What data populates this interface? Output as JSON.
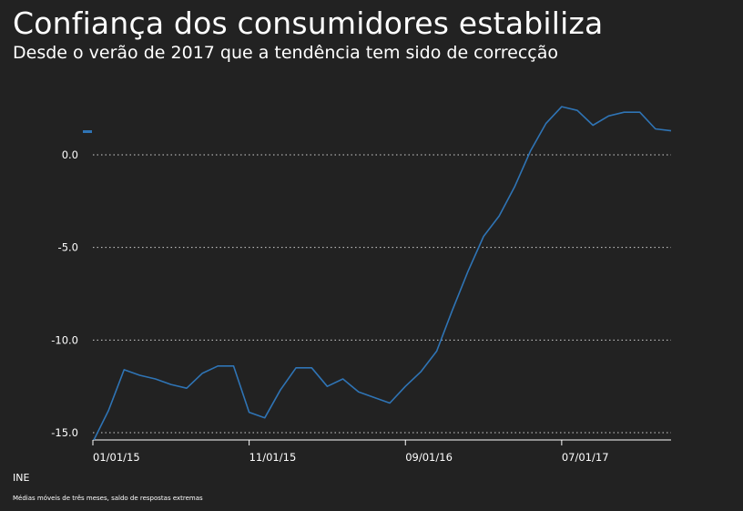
{
  "header": {
    "title": "Confiança dos consumidores estabiliza",
    "subtitle": "Desde o verão de 2017 que a tendência tem sido de correcção"
  },
  "footer": {
    "source": "INE",
    "note": "Médias móveis de três meses, saldo de respostas extremas"
  },
  "colors": {
    "background": "#222222",
    "line": "#2f74b5",
    "grid": "#cfcfcf",
    "text": "#ffffff"
  },
  "chart_data": {
    "type": "line",
    "title": "Confiança dos consumidores estabiliza",
    "subtitle": "Desde o verão de 2017 que a tendência tem sido de correcção",
    "xlabel": "",
    "ylabel": "",
    "ylim": [
      -15,
      0
    ],
    "y_ticks": [
      0,
      -5,
      -10,
      -15
    ],
    "y_tick_labels": [
      "0.0",
      "-5.0",
      "-10.0",
      "-15.0"
    ],
    "x_tick_indices": [
      0,
      10,
      20,
      30
    ],
    "x_tick_labels": [
      "01/01/15",
      "11/01/15",
      "09/01/16",
      "07/01/17"
    ],
    "legend": {
      "position": "top-left",
      "entries": [
        ""
      ]
    },
    "grid": true,
    "series": [
      {
        "name": "",
        "x": [
          "01/01/15",
          "02/01/15",
          "03/01/15",
          "04/01/15",
          "05/01/15",
          "06/01/15",
          "07/01/15",
          "08/01/15",
          "09/01/15",
          "10/01/15",
          "11/01/15",
          "12/01/15",
          "01/01/16",
          "02/01/16",
          "03/01/16",
          "04/01/16",
          "05/01/16",
          "06/01/16",
          "07/01/16",
          "08/01/16",
          "09/01/16",
          "10/01/16",
          "11/01/16",
          "12/01/16",
          "01/01/17",
          "02/01/17",
          "03/01/17",
          "04/01/17",
          "05/01/17",
          "06/01/17",
          "07/01/17",
          "08/01/17",
          "09/01/17",
          "10/01/17",
          "11/01/17",
          "12/01/17",
          "01/01/18",
          "02/01/18"
        ],
        "values": [
          -15.5,
          -13.8,
          -11.6,
          -11.9,
          -12.1,
          -12.4,
          -12.6,
          -11.8,
          -11.4,
          -11.4,
          -13.9,
          -14.2,
          -12.7,
          -11.5,
          -11.5,
          -12.5,
          -12.1,
          -12.8,
          -13.1,
          -13.4,
          -12.5,
          -11.7,
          -10.6,
          -8.4,
          -6.3,
          -4.4,
          -3.3,
          -1.7,
          0.2,
          1.7,
          2.6,
          2.4,
          1.6,
          2.1,
          2.3,
          2.3,
          1.4,
          1.3
        ]
      }
    ]
  }
}
